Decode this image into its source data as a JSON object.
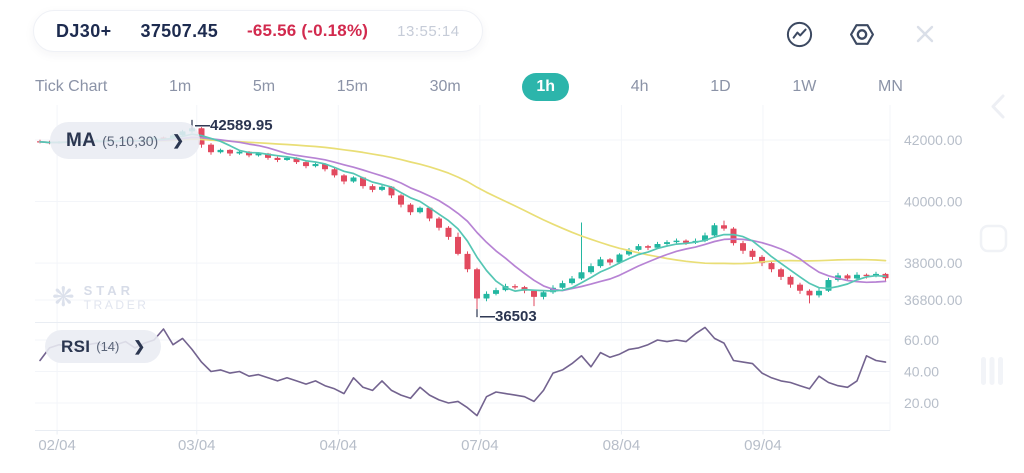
{
  "header": {
    "symbol": "DJ30+",
    "price": "37507.45",
    "change": "-65.56 (-0.18%)",
    "time": "13:55:14"
  },
  "tabs": {
    "items": [
      "Tick Chart",
      "1m",
      "5m",
      "15m",
      "30m",
      "1h",
      "4h",
      "1D",
      "1W",
      "MN"
    ],
    "selected": "1h"
  },
  "indicators": {
    "ma": {
      "name": "MA",
      "params": "(5,10,30)",
      "expand": "❯"
    },
    "rsi": {
      "name": "RSI",
      "params": "(14)",
      "expand": "❯"
    }
  },
  "watermark": {
    "icon": "❋",
    "line1": "STAR",
    "line2": "TRADER"
  },
  "chart_data": {
    "type": "candlestick",
    "symbol": "DJ30+",
    "interval": "1h",
    "ma_periods": [
      5,
      10,
      30
    ],
    "rsi_period": 14,
    "annotations": {
      "high": {
        "label": "—42589.95",
        "value": 42589.95
      },
      "low": {
        "label": "—36503",
        "value": 36503
      }
    },
    "y_ticks": [
      {
        "label": "42000.00",
        "value": 42000
      },
      {
        "label": "40000.00",
        "value": 40000
      },
      {
        "label": "38000.00",
        "value": 38000
      },
      {
        "label": "36800.00",
        "value": 36800
      }
    ],
    "rsi_ticks": [
      {
        "label": "60.00",
        "value": 60
      },
      {
        "label": "40.00",
        "value": 40
      },
      {
        "label": "20.00",
        "value": 20
      }
    ],
    "x_ticks": [
      {
        "label": "02/04",
        "index": 1.8
      },
      {
        "label": "03/04",
        "index": 16.5
      },
      {
        "label": "04/04",
        "index": 31.4
      },
      {
        "label": "07/04",
        "index": 46.3
      },
      {
        "label": "08/04",
        "index": 61.2
      },
      {
        "label": "09/04",
        "index": 76.1
      }
    ],
    "colors": {
      "up": "#23b7a1",
      "down": "#e24a5f",
      "ma5": "#55c6b4",
      "ma10": "#b783d4",
      "ma30": "#e9de76",
      "rsi": "#73638f",
      "axis": "#b7bec9",
      "grid": "#f3f5f9",
      "divider": "#e9edf3",
      "annotation": "#2b3550",
      "accent": "#2cb5ab",
      "negative": "#d22a4e"
    },
    "candles": [
      [
        41960,
        42010,
        41890,
        41940
      ],
      [
        41940,
        41975,
        41860,
        41900
      ],
      [
        41900,
        41965,
        41880,
        41930
      ],
      [
        41930,
        41995,
        41905,
        41960
      ],
      [
        41960,
        41990,
        41880,
        41920
      ],
      [
        41920,
        42010,
        41900,
        41980
      ],
      [
        41980,
        42030,
        41940,
        41990
      ],
      [
        41990,
        42020,
        41920,
        41950
      ],
      [
        41950,
        42000,
        41905,
        41975
      ],
      [
        41975,
        42040,
        41950,
        42010
      ],
      [
        42010,
        42050,
        41930,
        41960
      ],
      [
        41960,
        42060,
        41940,
        42020
      ],
      [
        42020,
        42120,
        41990,
        42080
      ],
      [
        42080,
        42110,
        42000,
        42050
      ],
      [
        42050,
        42200,
        42030,
        42150
      ],
      [
        42150,
        42330,
        42120,
        42280
      ],
      [
        42280,
        42589.95,
        42230,
        42380
      ],
      [
        42380,
        42420,
        41750,
        41850
      ],
      [
        41850,
        41900,
        41520,
        41600
      ],
      [
        41600,
        41720,
        41560,
        41680
      ],
      [
        41680,
        41700,
        41480,
        41560
      ],
      [
        41560,
        41660,
        41520,
        41620
      ],
      [
        41620,
        41640,
        41440,
        41500
      ],
      [
        41500,
        41600,
        41460,
        41560
      ],
      [
        41560,
        41580,
        41360,
        41420
      ],
      [
        41420,
        41460,
        41280,
        41350
      ],
      [
        41350,
        41470,
        41320,
        41420
      ],
      [
        41420,
        41440,
        41220,
        41280
      ],
      [
        41280,
        41310,
        41080,
        41150
      ],
      [
        41150,
        41260,
        41110,
        41220
      ],
      [
        41220,
        41250,
        40980,
        41050
      ],
      [
        41050,
        41090,
        40780,
        40850
      ],
      [
        40850,
        40890,
        40560,
        40650
      ],
      [
        40650,
        40820,
        40610,
        40780
      ],
      [
        40780,
        40800,
        40420,
        40500
      ],
      [
        40500,
        40560,
        40300,
        40380
      ],
      [
        40380,
        40540,
        40340,
        40480
      ],
      [
        40480,
        40500,
        40110,
        40200
      ],
      [
        40200,
        40240,
        39810,
        39900
      ],
      [
        39900,
        39950,
        39560,
        39650
      ],
      [
        39650,
        39840,
        39610,
        39800
      ],
      [
        39800,
        39820,
        39360,
        39450
      ],
      [
        39450,
        39500,
        39060,
        39150
      ],
      [
        39150,
        39200,
        38760,
        38850
      ],
      [
        38850,
        38990,
        38250,
        38300
      ],
      [
        38300,
        38380,
        37700,
        37800
      ],
      [
        37800,
        37850,
        36503,
        36850
      ],
      [
        36850,
        37080,
        36760,
        37000
      ],
      [
        37000,
        37200,
        36950,
        37120
      ],
      [
        37120,
        37330,
        37080,
        37250
      ],
      [
        37250,
        37310,
        37150,
        37220
      ],
      [
        37220,
        37260,
        37020,
        37100
      ],
      [
        37100,
        37130,
        36600,
        36900
      ],
      [
        36900,
        37120,
        36820,
        37050
      ],
      [
        37050,
        37280,
        37000,
        37200
      ],
      [
        37200,
        37430,
        37160,
        37350
      ],
      [
        37350,
        37580,
        37300,
        37500
      ],
      [
        37500,
        39320,
        37450,
        37700
      ],
      [
        37700,
        37990,
        37650,
        37900
      ],
      [
        37900,
        38200,
        37850,
        38120
      ],
      [
        38120,
        38160,
        37930,
        38020
      ],
      [
        38020,
        38320,
        37980,
        38280
      ],
      [
        38280,
        38490,
        38230,
        38430
      ],
      [
        38430,
        38620,
        38390,
        38550
      ],
      [
        38550,
        38590,
        38420,
        38500
      ],
      [
        38500,
        38690,
        38460,
        38620
      ],
      [
        38620,
        38740,
        38560,
        38680
      ],
      [
        38680,
        38800,
        38640,
        38730
      ],
      [
        38730,
        38770,
        38590,
        38660
      ],
      [
        38660,
        38800,
        38620,
        38720
      ],
      [
        38720,
        38990,
        38680,
        38900
      ],
      [
        38900,
        39300,
        38850,
        39230
      ],
      [
        39230,
        39380,
        39050,
        39120
      ],
      [
        39120,
        39170,
        38570,
        38650
      ],
      [
        38650,
        38720,
        38300,
        38400
      ],
      [
        38400,
        38460,
        38100,
        38200
      ],
      [
        38200,
        38260,
        37900,
        38000
      ],
      [
        38000,
        38060,
        37700,
        37800
      ],
      [
        37800,
        37850,
        37450,
        37550
      ],
      [
        37550,
        37600,
        37200,
        37300
      ],
      [
        37300,
        37360,
        37000,
        37100
      ],
      [
        37100,
        37150,
        36690,
        36950
      ],
      [
        36950,
        37180,
        36880,
        37100
      ],
      [
        37100,
        37520,
        37060,
        37450
      ],
      [
        37450,
        37680,
        37400,
        37600
      ],
      [
        37600,
        37650,
        37420,
        37500
      ],
      [
        37500,
        37700,
        37460,
        37620
      ],
      [
        37620,
        37660,
        37500,
        37580
      ],
      [
        37580,
        37720,
        37540,
        37650
      ],
      [
        37650,
        37680,
        37430,
        37507.45
      ]
    ],
    "rsi": [
      47,
      55,
      57,
      56,
      54,
      57,
      58,
      55,
      57,
      59,
      55,
      58,
      60,
      67,
      57,
      61,
      54,
      46,
      40,
      41,
      39,
      40,
      37,
      38,
      36,
      34,
      36,
      34,
      32,
      34,
      31,
      29,
      26,
      36,
      30,
      28,
      34,
      28,
      25,
      23,
      30,
      25,
      22,
      20,
      21,
      17,
      12,
      24,
      27,
      26,
      25,
      24,
      21,
      28,
      39,
      41,
      45,
      50,
      43,
      52,
      49,
      51,
      54,
      55,
      57,
      60,
      59,
      60,
      59,
      64,
      68,
      61,
      58,
      47,
      46,
      45,
      39,
      36,
      34,
      33,
      31,
      29,
      37,
      33,
      31,
      30,
      34,
      50,
      47,
      46
    ]
  }
}
